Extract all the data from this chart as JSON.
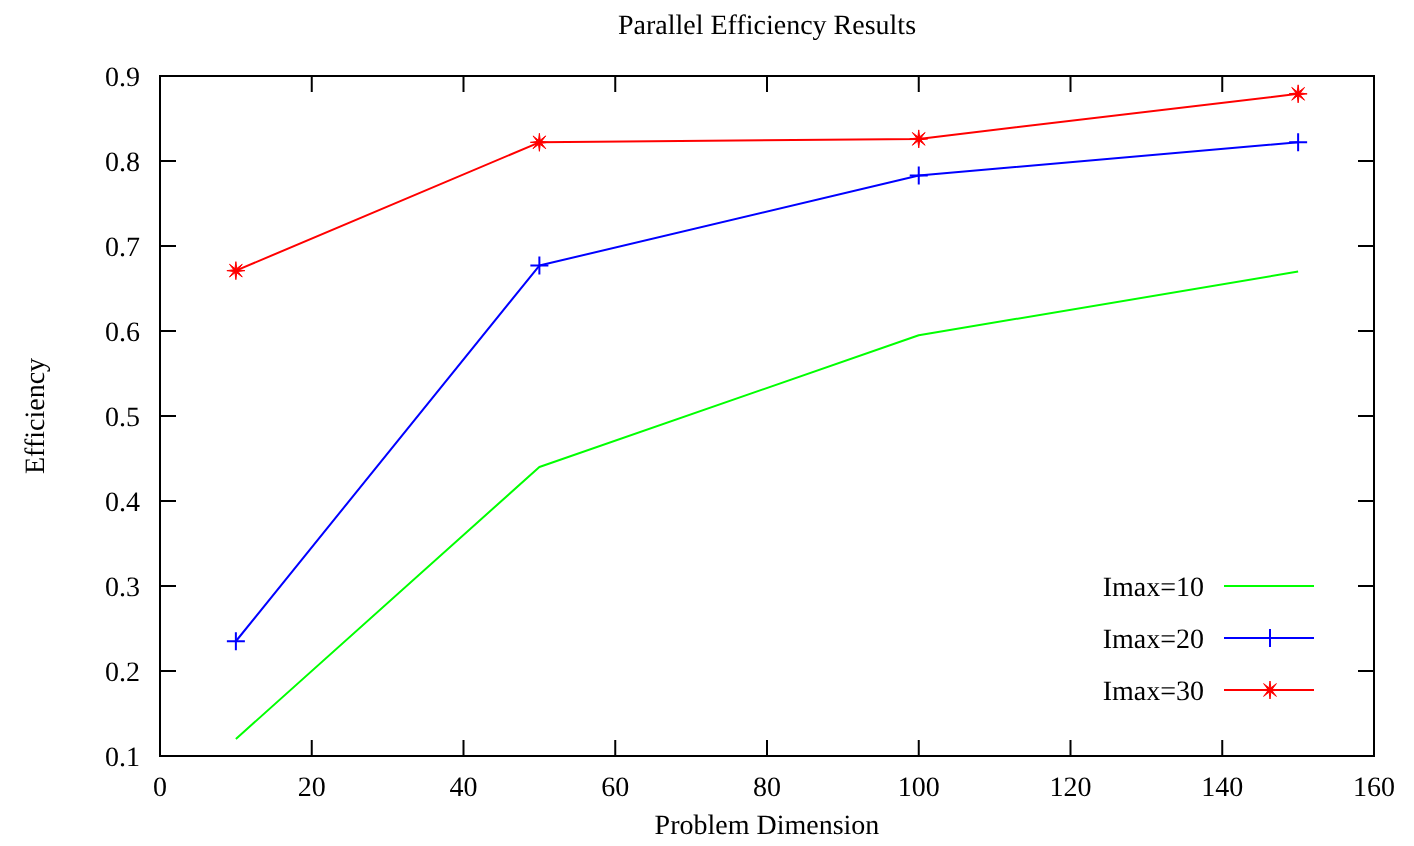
{
  "chart_data": {
    "type": "line",
    "title": "Parallel Efficiency Results",
    "xlabel": "Problem Dimension",
    "ylabel": "Efficiency",
    "x": [
      10,
      50,
      100,
      150
    ],
    "series": [
      {
        "name": "Imax=10",
        "color": "#00ff00",
        "marker": "none",
        "values": [
          0.12,
          0.44,
          0.595,
          0.67
        ]
      },
      {
        "name": "Imax=20",
        "color": "#0000ff",
        "marker": "cross",
        "values": [
          0.235,
          0.677,
          0.783,
          0.822
        ]
      },
      {
        "name": "Imax=30",
        "color": "#ff0000",
        "marker": "star",
        "values": [
          0.671,
          0.822,
          0.826,
          0.879
        ]
      }
    ],
    "xlim": [
      0,
      160
    ],
    "xticks": [
      0,
      20,
      40,
      60,
      80,
      100,
      120,
      140,
      160
    ],
    "ylim": [
      0.1,
      0.9
    ],
    "yticks": [
      0.1,
      0.2,
      0.3,
      0.4,
      0.5,
      0.6,
      0.7,
      0.8,
      0.9
    ],
    "grid": false,
    "legend": "bottom right",
    "line_style": "solid"
  }
}
